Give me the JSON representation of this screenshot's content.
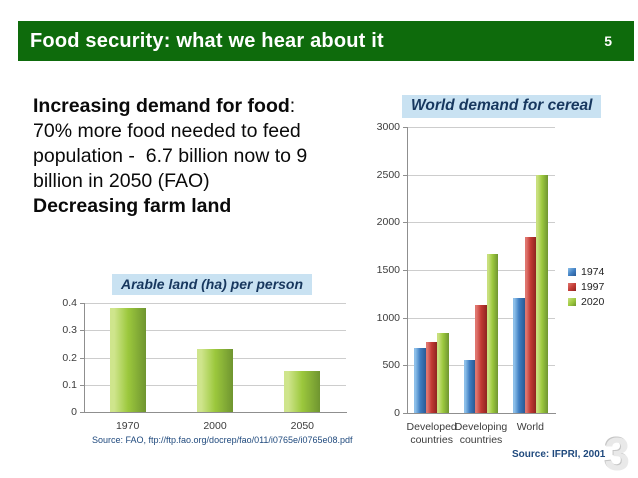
{
  "slide": {
    "header": {
      "title": "Food security: what we hear about it",
      "page_number": "5",
      "bg_color": "#0e6b0c",
      "text_color": "#ffffff"
    },
    "intro": {
      "line1_bold": "Increasing demand for food",
      "line1_colon": ":",
      "line2": "70% more food needed to feed",
      "line3": "population -  6.7 billion now to 9",
      "line4": "billion in 2050 (FAO)",
      "line5_bold": "Decreasing farm land"
    },
    "watermark": "3"
  },
  "chart_data": [
    {
      "type": "bar",
      "title": "Arable land (ha) per person",
      "categories": [
        "1970",
        "2000",
        "2050"
      ],
      "values": [
        0.38,
        0.23,
        0.15
      ],
      "xlabel": "",
      "ylabel": "",
      "ylim": [
        0,
        0.4
      ],
      "yticks": [
        "0",
        "0.1",
        "0.2",
        "0.3",
        "0.4"
      ],
      "grid": true,
      "legend_position": "none",
      "bar_colors": {
        "light": "#cfe58c",
        "base": "#9cc83d",
        "dark": "#6f9530"
      },
      "title_bg": "#c9e2f2",
      "title_color": "#17375e",
      "source": "Source: FAO, ftp://ftp.fao.org/docrep/fao/011/i0765e/i0765e08.pdf"
    },
    {
      "type": "bar",
      "title": "World demand for cereal",
      "categories": [
        "Developed countries",
        "Developing countries",
        "World"
      ],
      "series": [
        {
          "name": "1974",
          "values": [
            680,
            560,
            1210
          ],
          "colors": {
            "light": "#8cbfe9",
            "base": "#3f7ec2",
            "dark": "#2a5a94"
          }
        },
        {
          "name": "1997",
          "values": [
            745,
            1130,
            1850
          ],
          "colors": {
            "light": "#e0766f",
            "base": "#c23a34",
            "dark": "#8e2420"
          }
        },
        {
          "name": "2020",
          "values": [
            840,
            1670,
            2500
          ],
          "colors": {
            "light": "#c9e07e",
            "base": "#9cc83d",
            "dark": "#6f9530"
          }
        }
      ],
      "xlabel": "",
      "ylabel": "",
      "ylim": [
        0,
        3000
      ],
      "yticks": [
        "0",
        "500",
        "1000",
        "1500",
        "2000",
        "2500",
        "3000"
      ],
      "grid": true,
      "legend_position": "right",
      "title_bg": "#c9e2f2",
      "title_color": "#17375e",
      "source": "Source: IFPRI, 2001"
    }
  ]
}
